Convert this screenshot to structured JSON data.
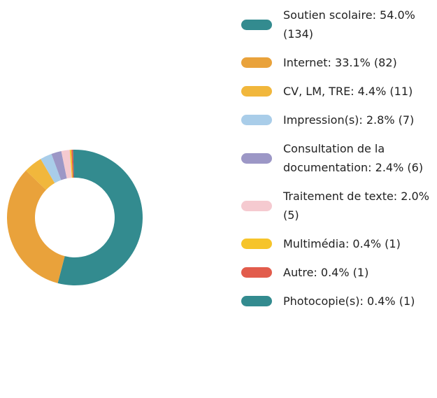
{
  "chart_data": {
    "type": "donut",
    "value_labels": [
      "Soutien scolaire: 54.0% (134)",
      "Internet: 33.1% (82)",
      "CV, LM, TRE: 4.4% (11)",
      "Impression(s): 2.8% (7)",
      "Consultation de la documentation: 2.4% (6)",
      "Traitement de texte: 2.0% (5)",
      "Multimédia: 0.4% (1)",
      "Autre: 0.4% (1)",
      "Photocopie(s): 0.4% (1)"
    ],
    "values": [
      54.0,
      33.1,
      4.4,
      2.8,
      2.4,
      2.0,
      0.4,
      0.4,
      0.4
    ],
    "colors": [
      "#338b8f",
      "#e9a23b",
      "#f1b73c",
      "#a9cde9",
      "#9c97c6",
      "#f5cad0",
      "#f6c42a",
      "#e25c4c",
      "#338b8f"
    ]
  }
}
